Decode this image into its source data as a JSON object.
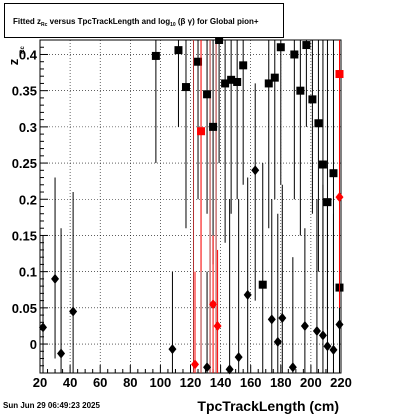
{
  "footer": {
    "date": "Sun Jun 29 06:49:23 2025"
  },
  "title": {
    "pre": "Fitted  z",
    "sub": "Rc",
    "mid": "  versus TpcTrackLength and log",
    "sub2": "10",
    "post": " (β  γ) for Global pion+"
  },
  "chart_data": {
    "type": "scatter",
    "xlabel": "TpcTrackLength (cm)",
    "ylabel": "z_Rc",
    "xlim": [
      20,
      220
    ],
    "ylim": [
      -0.04,
      0.42
    ],
    "x_ticks": [
      20,
      40,
      60,
      80,
      100,
      120,
      140,
      160,
      180,
      200,
      220
    ],
    "y_ticks": [
      0,
      0.05,
      0.1,
      0.15,
      0.2,
      0.25,
      0.3,
      0.35,
      0.4
    ],
    "x_tick_labels": [
      "20",
      "40",
      "60",
      "80",
      "100",
      "120",
      "140",
      "160",
      "180",
      "200",
      "220"
    ],
    "y_tick_labels": [
      "0",
      "0.05",
      "0.1",
      "0.15",
      "0.2",
      "0.25",
      "0.3",
      "0.35",
      "0.4"
    ],
    "grid": true,
    "colors": {
      "black": "#000000",
      "red": "#ff0000",
      "red_line": "#b03030"
    },
    "red_vertical_lines": [
      122,
      127,
      133,
      137
    ],
    "series": [
      {
        "marker": "square",
        "color": "#000000",
        "points": [
          {
            "x": 97,
            "y": 0.398,
            "lo": 0.25,
            "hi": 0.42
          },
          {
            "x": 112,
            "y": 0.406,
            "lo": 0.3,
            "hi": 0.42
          },
          {
            "x": 117,
            "y": 0.355,
            "lo": 0.16,
            "hi": 0.42
          },
          {
            "x": 125,
            "y": 0.39,
            "lo": 0.2,
            "hi": 0.42
          },
          {
            "x": 131,
            "y": 0.345,
            "lo": 0.18,
            "hi": 0.42
          },
          {
            "x": 135,
            "y": 0.3,
            "lo": 0.11,
            "hi": 0.42
          },
          {
            "x": 139,
            "y": 0.42,
            "lo": 0.25,
            "hi": 0.42
          },
          {
            "x": 143,
            "y": 0.36,
            "lo": 0.14,
            "hi": 0.42
          },
          {
            "x": 147,
            "y": 0.365,
            "lo": 0.18,
            "hi": 0.42
          },
          {
            "x": 151,
            "y": 0.362,
            "lo": 0.2,
            "hi": 0.42
          },
          {
            "x": 155,
            "y": 0.385,
            "lo": 0.22,
            "hi": 0.42
          },
          {
            "x": 172,
            "y": 0.36,
            "lo": 0.16,
            "hi": 0.42
          },
          {
            "x": 176,
            "y": 0.368,
            "lo": 0.2,
            "hi": 0.42
          },
          {
            "x": 180,
            "y": 0.41,
            "lo": 0.22,
            "hi": 0.42
          },
          {
            "x": 189,
            "y": 0.4,
            "lo": 0.2,
            "hi": 0.42
          },
          {
            "x": 193,
            "y": 0.35,
            "lo": 0.15,
            "hi": 0.42
          },
          {
            "x": 197,
            "y": 0.413,
            "lo": 0.3,
            "hi": 0.42
          },
          {
            "x": 201,
            "y": 0.338,
            "lo": 0.18,
            "hi": 0.42
          },
          {
            "x": 205,
            "y": 0.305,
            "lo": 0.1,
            "hi": 0.42
          },
          {
            "x": 208,
            "y": 0.248,
            "lo": 0.05,
            "hi": 0.42
          },
          {
            "x": 211,
            "y": 0.196,
            "lo": 0.02,
            "hi": 0.42
          },
          {
            "x": 215,
            "y": 0.236,
            "lo": 0.08,
            "hi": 0.42
          },
          {
            "x": 168,
            "y": 0.082,
            "lo": -0.04,
            "hi": 0.25
          },
          {
            "x": 219,
            "y": 0.078,
            "lo": -0.04,
            "hi": 0.3
          }
        ]
      },
      {
        "marker": "diamond",
        "color": "#000000",
        "points": [
          {
            "x": 22,
            "y": 0.023,
            "lo": -0.04,
            "hi": 0.15
          },
          {
            "x": 30,
            "y": 0.09,
            "lo": -0.02,
            "hi": 0.23
          },
          {
            "x": 34,
            "y": -0.013,
            "lo": -0.04,
            "hi": 0.16
          },
          {
            "x": 42,
            "y": 0.045,
            "lo": -0.04,
            "hi": 0.21
          },
          {
            "x": 108,
            "y": -0.007,
            "lo": -0.04,
            "hi": 0.1
          },
          {
            "x": 131,
            "y": -0.032,
            "lo": -0.04,
            "hi": 0.1
          },
          {
            "x": 146,
            "y": -0.035,
            "lo": -0.04,
            "hi": 0.2
          },
          {
            "x": 152,
            "y": -0.018,
            "lo": -0.04,
            "hi": 0.2
          },
          {
            "x": 158,
            "y": 0.068,
            "lo": -0.04,
            "hi": 0.23
          },
          {
            "x": 163,
            "y": 0.24,
            "lo": 0.06,
            "hi": 0.36
          },
          {
            "x": 174,
            "y": 0.034,
            "lo": -0.04,
            "hi": 0.2
          },
          {
            "x": 178,
            "y": 0.003,
            "lo": -0.04,
            "hi": 0.18
          },
          {
            "x": 181,
            "y": 0.036,
            "lo": -0.04,
            "hi": 0.22
          },
          {
            "x": 188,
            "y": -0.032,
            "lo": -0.04,
            "hi": 0.12
          },
          {
            "x": 196,
            "y": 0.025,
            "lo": -0.04,
            "hi": 0.16
          },
          {
            "x": 204,
            "y": 0.018,
            "lo": -0.04,
            "hi": 0.2
          },
          {
            "x": 208,
            "y": 0.012,
            "lo": -0.04,
            "hi": 0.22
          },
          {
            "x": 211,
            "y": -0.003,
            "lo": -0.04,
            "hi": 0.19
          },
          {
            "x": 215,
            "y": -0.008,
            "lo": -0.04,
            "hi": 0.18
          },
          {
            "x": 219,
            "y": 0.027,
            "lo": -0.04,
            "hi": 0.17
          }
        ]
      },
      {
        "marker": "square",
        "color": "#ff0000",
        "points": [
          {
            "x": 127,
            "y": 0.294,
            "lo": 0.1,
            "hi": 0.42
          },
          {
            "x": 219,
            "y": 0.373,
            "lo": 0.2,
            "hi": 0.42
          }
        ]
      },
      {
        "marker": "diamond",
        "color": "#ff0000",
        "points": [
          {
            "x": 123,
            "y": -0.028,
            "lo": -0.04,
            "hi": 0.1
          },
          {
            "x": 135,
            "y": 0.055,
            "lo": -0.04,
            "hi": 0.15
          },
          {
            "x": 138,
            "y": 0.025,
            "lo": -0.04,
            "hi": 0.13
          },
          {
            "x": 219,
            "y": 0.203,
            "lo": 0.05,
            "hi": 0.32
          }
        ]
      }
    ]
  }
}
